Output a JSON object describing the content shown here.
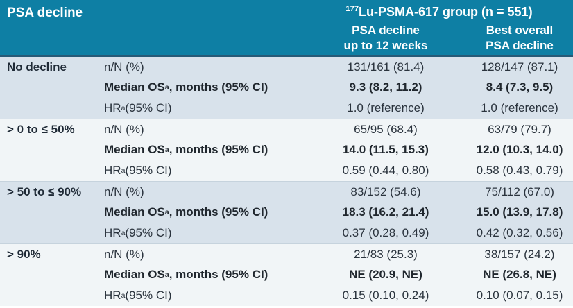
{
  "colors": {
    "header_teal": "#0e7fa4",
    "header_divider": "#265a77",
    "band_dark": "#d8e2eb",
    "band_light": "#f1f5f7",
    "header_text": "#ffffff",
    "body_text": "#2a333d"
  },
  "header": {
    "left_title": "PSA decline",
    "group_title_sup": "177",
    "group_title_rest": "Lu-PSMA-617 group (n = 551)",
    "subcol1_line1": "PSA decline",
    "subcol1_line2": "up to 12 weeks",
    "subcol2_line1": "Best overall",
    "subcol2_line2": "PSA decline"
  },
  "metrics": {
    "nN_label": "n/N (%)",
    "os_label_pre": "Median OS",
    "sup_a": "a",
    "os_label_post": ", months (95% CI)",
    "hr_label_pre": "HR",
    "hr_label_post": " (95% CI)"
  },
  "groups": [
    {
      "label": "No decline",
      "nN": [
        "131/161 (81.4)",
        "128/147 (87.1)"
      ],
      "os": [
        "9.3 (8.2, 11.2)",
        "8.4 (7.3, 9.5)"
      ],
      "hr": [
        "1.0 (reference)",
        "1.0 (reference)"
      ]
    },
    {
      "label": "> 0 to ≤ 50%",
      "nN": [
        "65/95 (68.4)",
        "63/79 (79.7)"
      ],
      "os": [
        "14.0 (11.5, 15.3)",
        "12.0 (10.3, 14.0)"
      ],
      "hr": [
        "0.59 (0.44, 0.80)",
        "0.58 (0.43, 0.79)"
      ]
    },
    {
      "label": "> 50 to ≤ 90%",
      "nN": [
        "83/152 (54.6)",
        "75/112 (67.0)"
      ],
      "os": [
        "18.3 (16.2, 21.4)",
        "15.0 (13.9, 17.8)"
      ],
      "hr": [
        "0.37 (0.28, 0.49)",
        "0.42 (0.32, 0.56)"
      ]
    },
    {
      "label": "> 90%",
      "nN": [
        "21/83 (25.3)",
        "38/157 (24.2)"
      ],
      "os": [
        "NE (20.9, NE)",
        "NE (26.8, NE)"
      ],
      "hr": [
        "0.15 (0.10, 0.24)",
        "0.10 (0.07, 0.15)"
      ]
    }
  ]
}
